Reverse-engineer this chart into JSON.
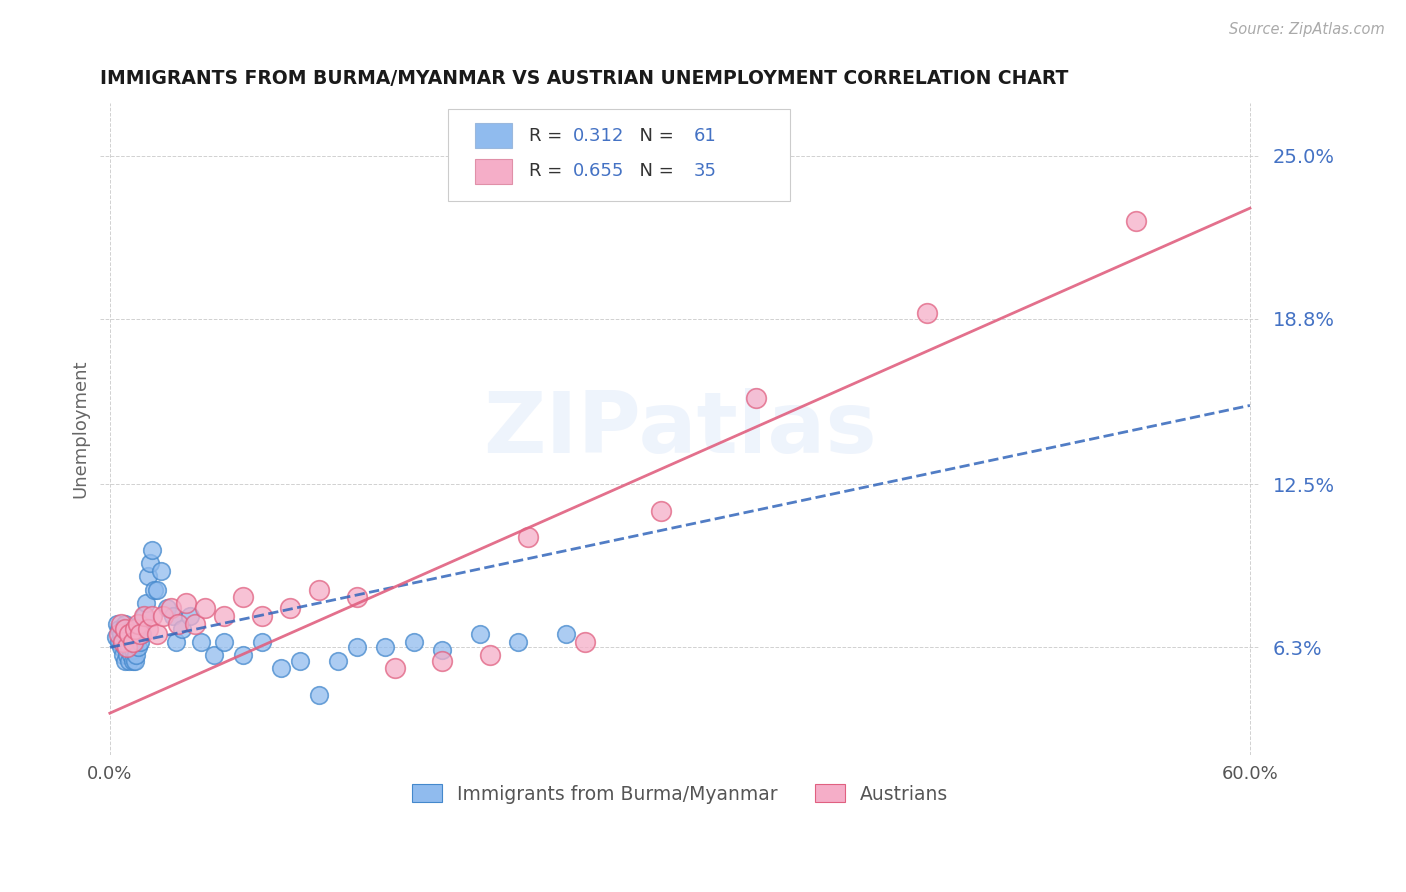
{
  "title": "IMMIGRANTS FROM BURMA/MYANMAR VS AUSTRIAN UNEMPLOYMENT CORRELATION CHART",
  "source": "Source: ZipAtlas.com",
  "ylabel": "Unemployment",
  "xlim": [
    -0.005,
    0.605
  ],
  "ylim": [
    0.022,
    0.27
  ],
  "yticks": [
    0.063,
    0.125,
    0.188,
    0.25
  ],
  "ytick_labels": [
    "6.3%",
    "12.5%",
    "18.8%",
    "25.0%"
  ],
  "xticks": [
    0.0,
    0.6
  ],
  "xtick_labels": [
    "0.0%",
    "60.0%"
  ],
  "blue_R": "0.312",
  "blue_N": "61",
  "pink_R": "0.655",
  "pink_N": "35",
  "blue_color": "#90bbee",
  "pink_color": "#f5aec8",
  "blue_edge_color": "#4488cc",
  "pink_edge_color": "#e06080",
  "blue_line_color": "#3366bb",
  "pink_line_color": "#e06080",
  "number_color": "#4472c4",
  "text_color": "#333333",
  "legend_label_blue": "Immigrants from Burma/Myanmar",
  "legend_label_pink": "Austrians",
  "watermark": "ZIPatlas",
  "blue_scatter_x": [
    0.003,
    0.004,
    0.005,
    0.005,
    0.006,
    0.006,
    0.007,
    0.007,
    0.007,
    0.008,
    0.008,
    0.008,
    0.008,
    0.009,
    0.009,
    0.01,
    0.01,
    0.01,
    0.011,
    0.011,
    0.012,
    0.012,
    0.012,
    0.013,
    0.013,
    0.014,
    0.014,
    0.015,
    0.015,
    0.016,
    0.016,
    0.017,
    0.018,
    0.019,
    0.02,
    0.021,
    0.022,
    0.023,
    0.025,
    0.027,
    0.03,
    0.033,
    0.035,
    0.038,
    0.042,
    0.048,
    0.055,
    0.06,
    0.07,
    0.08,
    0.09,
    0.1,
    0.11,
    0.12,
    0.13,
    0.145,
    0.16,
    0.175,
    0.195,
    0.215,
    0.24
  ],
  "blue_scatter_y": [
    0.067,
    0.072,
    0.065,
    0.07,
    0.063,
    0.068,
    0.06,
    0.065,
    0.07,
    0.058,
    0.063,
    0.067,
    0.072,
    0.06,
    0.065,
    0.058,
    0.063,
    0.068,
    0.06,
    0.07,
    0.058,
    0.062,
    0.067,
    0.058,
    0.065,
    0.06,
    0.068,
    0.063,
    0.07,
    0.065,
    0.072,
    0.068,
    0.075,
    0.08,
    0.09,
    0.095,
    0.1,
    0.085,
    0.085,
    0.092,
    0.078,
    0.075,
    0.065,
    0.07,
    0.075,
    0.065,
    0.06,
    0.065,
    0.06,
    0.065,
    0.055,
    0.058,
    0.045,
    0.058,
    0.063,
    0.063,
    0.065,
    0.062,
    0.068,
    0.065,
    0.068
  ],
  "pink_scatter_x": [
    0.005,
    0.006,
    0.007,
    0.008,
    0.009,
    0.01,
    0.012,
    0.013,
    0.015,
    0.016,
    0.018,
    0.02,
    0.022,
    0.025,
    0.028,
    0.032,
    0.036,
    0.04,
    0.045,
    0.05,
    0.06,
    0.07,
    0.08,
    0.095,
    0.11,
    0.13,
    0.15,
    0.175,
    0.2,
    0.22,
    0.25,
    0.29,
    0.34,
    0.43,
    0.54
  ],
  "pink_scatter_y": [
    0.068,
    0.072,
    0.065,
    0.07,
    0.063,
    0.068,
    0.065,
    0.07,
    0.072,
    0.068,
    0.075,
    0.07,
    0.075,
    0.068,
    0.075,
    0.078,
    0.072,
    0.08,
    0.072,
    0.078,
    0.075,
    0.082,
    0.075,
    0.078,
    0.085,
    0.082,
    0.055,
    0.058,
    0.06,
    0.105,
    0.065,
    0.115,
    0.158,
    0.19,
    0.225
  ],
  "blue_trend_start_x": 0.0,
  "blue_trend_start_y": 0.063,
  "blue_trend_end_x": 0.6,
  "blue_trend_end_y": 0.155,
  "pink_trend_start_x": 0.0,
  "pink_trend_start_y": 0.038,
  "pink_trend_end_x": 0.6,
  "pink_trend_end_y": 0.23
}
